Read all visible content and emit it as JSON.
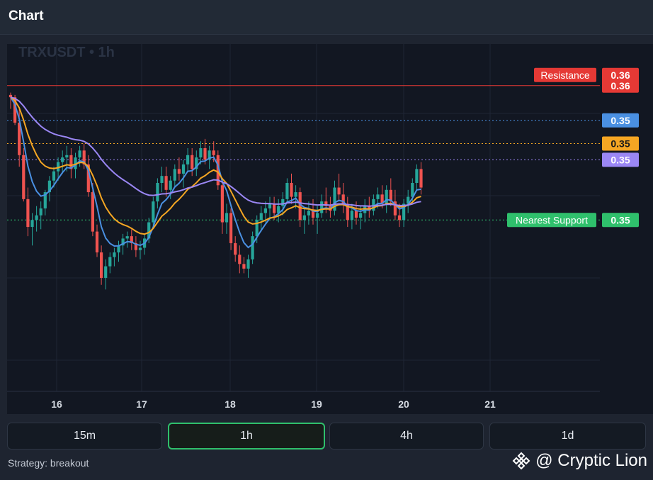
{
  "header": {
    "title": "Chart"
  },
  "timeframes": [
    {
      "label": "15m",
      "active": false
    },
    {
      "label": "1h",
      "active": true
    },
    {
      "label": "4h",
      "active": false
    },
    {
      "label": "1d",
      "active": false
    }
  ],
  "footer": {
    "strategy": "Strategy: breakout",
    "brand": "@ Cryptic Lion"
  },
  "colors": {
    "up": "#26a69a",
    "down": "#ef5350",
    "ema_fast": "#4a90e2",
    "ema_mid": "#f5a623",
    "ema_slow": "#9b87f5",
    "resistance": "#e53935",
    "support": "#2fc06c",
    "active_border": "#2fc06c"
  },
  "icons": {
    "brand_logo": "binance-diamond-icon"
  },
  "chart_data": {
    "type": "candlestick",
    "symbol": "TRXUSDT",
    "interval": "1h",
    "watermark": "TRXUSDT • 1h",
    "x_ticks": [
      "16",
      "17",
      "18",
      "19",
      "20",
      "21"
    ],
    "y_ticks": [
      "0.36"
    ],
    "ylim": [
      0.3428,
      0.3578
    ],
    "price_tick_values": [
      0.356
    ],
    "x_tick_index": [
      16,
      40,
      64,
      88,
      112,
      136
    ],
    "closes": [
      0.3556,
      0.3548,
      0.3535,
      0.3523,
      0.3512,
      0.3506,
      0.3505,
      0.3511,
      0.3519,
      0.3522,
      0.3527,
      0.3529,
      0.3532,
      0.3531,
      0.3528,
      0.3529,
      0.3532,
      0.3531,
      0.3527,
      0.353,
      0.3526,
      0.3517,
      0.3508,
      0.3502,
      0.3497,
      0.3491,
      0.3487,
      0.3488,
      0.3493,
      0.3496,
      0.3497,
      0.3496,
      0.3498,
      0.3495,
      0.3495,
      0.35,
      0.3509,
      0.3517,
      0.352,
      0.3519,
      0.3516,
      0.3518,
      0.352,
      0.3523,
      0.3519,
      0.3521,
      0.3524,
      0.3526,
      0.353,
      0.3527,
      0.3523,
      0.3524,
      0.353,
      0.3534,
      0.3527,
      0.3519,
      0.3516,
      0.3516,
      0.3514,
      0.3509,
      0.3505,
      0.3504,
      0.3506,
      0.3505,
      0.3508,
      0.3511,
      0.3509,
      0.3509,
      0.3507,
      0.3505,
      0.3503,
      0.3508,
      0.3511,
      0.3512,
      0.3514,
      0.3517,
      0.3516,
      0.3513,
      0.351,
      0.3506,
      0.3504,
      0.3508,
      0.3509,
      0.3506,
      0.3508,
      0.3513,
      0.3514,
      0.3513,
      0.3514,
      0.3511,
      0.3506,
      0.3505,
      0.3509,
      0.3512,
      0.3513,
      0.3513,
      0.3509,
      0.3509,
      0.3511,
      0.3507,
      0.351,
      0.3512,
      0.3517,
      0.3523,
      0.3525,
      0.3523,
      0.3522,
      0.3518,
      0.3516,
      0.3513,
      0.3509,
      0.3505,
      0.3506,
      0.351,
      0.3509,
      0.3511,
      0.3515,
      0.3517,
      0.3519,
      0.3518,
      0.3521,
      0.3523,
      0.3524,
      0.3521,
      0.352,
      0.3521,
      0.3523,
      0.3525,
      0.3525,
      0.3528,
      0.353,
      0.3535,
      0.3535,
      0.3539,
      0.3541,
      0.3542,
      0.3541,
      0.3543,
      0.3547,
      0.3555,
      0.3552,
      0.3557,
      0.3554,
      0.3549,
      0.3554,
      0.3551,
      0.3545,
      0.3547,
      0.3549,
      0.3546,
      0.3544,
      0.3542,
      0.3538,
      0.3536,
      0.3539,
      0.3543,
      0.3547,
      0.3544,
      0.3542,
      0.3539,
      0.3543,
      0.3547,
      0.3553,
      0.3558,
      0.3556,
      0.3552,
      0.3545,
      0.3542,
      0.3535,
      0.3532,
      0.3527,
      0.3524,
      0.3526,
      0.3529,
      0.3533,
      0.3537,
      0.3542,
      0.3538,
      0.3537,
      0.3539,
      0.3543,
      0.3547,
      0.3552,
      0.3549,
      0.3543,
      0.354,
      0.3536,
      0.3532,
      0.3532,
      0.3535,
      0.3536,
      0.3532,
      0.3531,
      0.353,
      0.3533,
      0.3536,
      0.3542,
      0.3548,
      0.3551,
      0.3548,
      0.3546,
      0.3551,
      0.3553,
      0.3555,
      0.3556,
      0.3557,
      0.3551,
      0.3549,
      0.3548,
      0.3553,
      0.3556,
      0.3558,
      0.3557,
      0.3555,
      0.3552,
      0.3548,
      0.3546,
      0.3546,
      0.3547,
      0.3549,
      0.3548,
      0.3551,
      0.3552,
      0.3555,
      0.3558,
      0.3556,
      0.3553,
      0.3551,
      0.3552,
      0.355,
      0.3548,
      0.355,
      0.3552,
      0.3549,
      0.3546,
      0.3542,
      0.3542,
      0.3545,
      0.3547,
      0.355,
      0.3552,
      0.3553,
      0.3551,
      0.3548,
      0.355,
      0.3549,
      0.3546,
      0.3543,
      0.3539,
      0.3537,
      0.3538,
      0.3537,
      0.3539,
      0.3543,
      0.3545,
      0.3542,
      0.3539,
      0.3541,
      0.354,
      0.3538,
      0.354,
      0.3539,
      0.3541,
      0.3541,
      0.3542,
      0.3539,
      0.3534,
      0.3535,
      0.3537,
      0.3538,
      0.3542,
      0.3546,
      0.3549,
      0.3545,
      0.3542,
      0.354,
      0.3541,
      0.3542,
      0.3545,
      0.3546,
      0.3545,
      0.3546,
      0.3548,
      0.3547,
      0.3546,
      0.3549,
      0.3551,
      0.3554,
      0.3556,
      0.3558,
      0.3556,
      0.3553,
      0.3553,
      0.3556,
      0.3558,
      0.3557,
      0.3556,
      0.3555,
      0.3557,
      0.3558,
      0.3559,
      0.3563,
      0.3568,
      0.357,
      0.3568,
      0.3568,
      0.3566,
      0.3564,
      0.3561,
      0.3558,
      0.3555,
      0.3553,
      0.3551,
      0.3549,
      0.3549,
      0.3547,
      0.3549,
      0.3551,
      0.3553,
      0.3552,
      0.3552,
      0.3553,
      0.3554,
      0.3558,
      0.3563,
      0.3569,
      0.3567,
      0.3564,
      0.3559,
      0.3556,
      0.3551,
      0.3549,
      0.3543,
      0.354,
      0.354,
      0.3539,
      0.3537,
      0.3533,
      0.3531,
      0.3533,
      0.3532,
      0.3536,
      0.3538,
      0.3539,
      0.354,
      0.3541,
      0.3542,
      0.3547,
      0.355,
      0.3554,
      0.3561,
      0.3567,
      0.3566,
      0.3564,
      0.3562,
      0.3563,
      0.3563,
      0.3563,
      0.3566,
      0.3568,
      0.3572,
      0.357,
      0.3569,
      0.3566,
      0.3566,
      0.3566,
      0.3562,
      0.3558,
      0.3557,
      0.3562,
      0.3566,
      0.3565,
      0.3564,
      0.3559,
      0.3557,
      0.3556,
      0.3558,
      0.356,
      0.3561,
      0.3561,
      0.3561,
      0.356,
      0.3558,
      0.3556,
      0.3556
    ],
    "ohlc": [
      [
        0.3556,
        0.3557,
        0.355,
        0.3555
      ],
      [
        0.3555,
        0.3556,
        0.3543,
        0.3544
      ],
      [
        0.3544,
        0.355,
        0.3525,
        0.353
      ],
      [
        0.353,
        0.3533,
        0.351,
        0.3511
      ],
      [
        0.3511,
        0.3516,
        0.3495,
        0.3499
      ],
      [
        0.3499,
        0.3505,
        0.3491,
        0.3502
      ],
      [
        0.3502,
        0.3508,
        0.3497,
        0.3504
      ],
      [
        0.3504,
        0.351,
        0.3498,
        0.3507
      ],
      [
        0.3507,
        0.3515,
        0.3504,
        0.3514
      ],
      [
        0.3514,
        0.3521,
        0.351,
        0.3519
      ],
      [
        0.3519,
        0.3525,
        0.3516,
        0.3523
      ],
      [
        0.3523,
        0.3529,
        0.3519,
        0.3527
      ],
      [
        0.3527,
        0.3532,
        0.3522,
        0.3529
      ],
      [
        0.3529,
        0.3534,
        0.3523,
        0.353
      ],
      [
        0.353,
        0.3533,
        0.352,
        0.3524
      ],
      [
        0.3524,
        0.3531,
        0.352,
        0.3529
      ],
      [
        0.3529,
        0.3534,
        0.3525,
        0.3532
      ],
      [
        0.3532,
        0.3535,
        0.3524,
        0.3526
      ],
      [
        0.3526,
        0.353,
        0.3512,
        0.3514
      ],
      [
        0.3514,
        0.3518,
        0.3495,
        0.3497
      ],
      [
        0.3497,
        0.35,
        0.3486,
        0.3488
      ],
      [
        0.3488,
        0.3491,
        0.3474,
        0.3477
      ],
      [
        0.3477,
        0.3485,
        0.3472,
        0.3482
      ],
      [
        0.3482,
        0.3488,
        0.3479,
        0.3486
      ],
      [
        0.3486,
        0.349,
        0.3482,
        0.3488
      ],
      [
        0.3488,
        0.3493,
        0.3484,
        0.3491
      ],
      [
        0.3491,
        0.3496,
        0.3487,
        0.3494
      ],
      [
        0.3494,
        0.3497,
        0.349,
        0.3495
      ],
      [
        0.3495,
        0.3498,
        0.3489,
        0.3492
      ],
      [
        0.3492,
        0.3495,
        0.3486,
        0.3489
      ],
      [
        0.3489,
        0.3493,
        0.3485,
        0.349
      ],
      [
        0.349,
        0.3496,
        0.3487,
        0.3494
      ],
      [
        0.3494,
        0.3503,
        0.3492,
        0.3501
      ],
      [
        0.3501,
        0.3512,
        0.3499,
        0.351
      ],
      [
        0.351,
        0.352,
        0.3507,
        0.3518
      ],
      [
        0.3518,
        0.3525,
        0.3514,
        0.3521
      ],
      [
        0.3521,
        0.3525,
        0.3512,
        0.3515
      ],
      [
        0.3515,
        0.3521,
        0.3511,
        0.3519
      ],
      [
        0.3519,
        0.3526,
        0.3516,
        0.3524
      ],
      [
        0.3524,
        0.3529,
        0.3519,
        0.3522
      ],
      [
        0.3522,
        0.3528,
        0.3516,
        0.3526
      ],
      [
        0.3526,
        0.3533,
        0.3523,
        0.353
      ],
      [
        0.353,
        0.3533,
        0.3521,
        0.3524
      ],
      [
        0.3524,
        0.3532,
        0.3521,
        0.3529
      ],
      [
        0.3529,
        0.3536,
        0.3526,
        0.3533
      ],
      [
        0.3533,
        0.3537,
        0.3526,
        0.3528
      ],
      [
        0.3528,
        0.3534,
        0.3524,
        0.3532
      ],
      [
        0.3532,
        0.3536,
        0.3527,
        0.353
      ],
      [
        0.353,
        0.3532,
        0.3515,
        0.3517
      ],
      [
        0.3517,
        0.352,
        0.3496,
        0.3501
      ],
      [
        0.3501,
        0.3509,
        0.3496,
        0.3505
      ],
      [
        0.3505,
        0.3507,
        0.3489,
        0.3492
      ],
      [
        0.3492,
        0.3495,
        0.3484,
        0.3487
      ],
      [
        0.3487,
        0.3491,
        0.3479,
        0.3483
      ],
      [
        0.3483,
        0.3486,
        0.3479,
        0.3481
      ],
      [
        0.3481,
        0.3487,
        0.3477,
        0.3485
      ],
      [
        0.3485,
        0.3497,
        0.3483,
        0.3495
      ],
      [
        0.3495,
        0.3504,
        0.3492,
        0.3502
      ],
      [
        0.3502,
        0.3508,
        0.3497,
        0.3505
      ],
      [
        0.3505,
        0.351,
        0.3501,
        0.3507
      ],
      [
        0.3507,
        0.3512,
        0.3503,
        0.3509
      ],
      [
        0.3509,
        0.3512,
        0.3502,
        0.3505
      ],
      [
        0.3505,
        0.3511,
        0.3501,
        0.3508
      ],
      [
        0.3508,
        0.3514,
        0.3504,
        0.3511
      ],
      [
        0.3511,
        0.352,
        0.3509,
        0.3518
      ],
      [
        0.3518,
        0.3522,
        0.3509,
        0.3512
      ],
      [
        0.3512,
        0.3517,
        0.3507,
        0.3514
      ],
      [
        0.3514,
        0.3516,
        0.3499,
        0.3502
      ],
      [
        0.3502,
        0.3507,
        0.3496,
        0.3504
      ],
      [
        0.3504,
        0.351,
        0.35,
        0.3506
      ],
      [
        0.3506,
        0.3511,
        0.35,
        0.3503
      ],
      [
        0.3503,
        0.3508,
        0.3496,
        0.3505
      ],
      [
        0.3505,
        0.3513,
        0.3503,
        0.351
      ],
      [
        0.351,
        0.3516,
        0.3505,
        0.3508
      ],
      [
        0.3508,
        0.3512,
        0.3503,
        0.3506
      ],
      [
        0.3506,
        0.3519,
        0.3504,
        0.3516
      ],
      [
        0.3516,
        0.3522,
        0.351,
        0.3513
      ],
      [
        0.3513,
        0.3518,
        0.3505,
        0.3509
      ],
      [
        0.3509,
        0.3512,
        0.3499,
        0.3502
      ],
      [
        0.3502,
        0.3509,
        0.3498,
        0.3506
      ],
      [
        0.3506,
        0.351,
        0.35,
        0.3503
      ],
      [
        0.3503,
        0.3508,
        0.3498,
        0.3505
      ],
      [
        0.3505,
        0.3511,
        0.3501,
        0.3508
      ],
      [
        0.3508,
        0.3512,
        0.3503,
        0.3506
      ],
      [
        0.3506,
        0.3513,
        0.3504,
        0.3511
      ],
      [
        0.3511,
        0.3516,
        0.3507,
        0.3513
      ],
      [
        0.3513,
        0.3517,
        0.3507,
        0.3509
      ],
      [
        0.3509,
        0.3517,
        0.3505,
        0.3515
      ],
      [
        0.3515,
        0.352,
        0.3508,
        0.351
      ],
      [
        0.351,
        0.3515,
        0.3502,
        0.3504
      ],
      [
        0.3504,
        0.3509,
        0.3499,
        0.3502
      ],
      [
        0.3502,
        0.3511,
        0.3499,
        0.3509
      ],
      [
        0.3509,
        0.3515,
        0.3505,
        0.3512
      ],
      [
        0.3512,
        0.352,
        0.351,
        0.3518
      ],
      [
        0.3518,
        0.3526,
        0.3515,
        0.3524
      ],
      [
        0.3524,
        0.3527,
        0.3513,
        0.3516
      ]
    ],
    "series": [
      {
        "name": "",
        "color_key": "ema_fast"
      },
      {
        "name": "",
        "color_key": "ema_mid"
      },
      {
        "name": "",
        "color_key": "ema_slow"
      }
    ],
    "price_labels": [
      {
        "text": "0.36",
        "value": 0.356,
        "tone": "resistance"
      },
      {
        "text": "0.35",
        "value": 0.3545,
        "tone": "ema_fast"
      },
      {
        "text": "0.35",
        "value": 0.3535,
        "tone": "ema_mid"
      },
      {
        "text": "0.35",
        "value": 0.3528,
        "tone": "ema_slow"
      },
      {
        "text": "0.35",
        "value": 0.3502,
        "tone": "support"
      }
    ],
    "levels": [
      {
        "name": "Resistance",
        "value": 0.356,
        "price_text": "0.36",
        "style": "solid",
        "tone": "resistance"
      },
      {
        "name": "Nearest Support",
        "value": 0.3502,
        "price_text": "0.35",
        "style": "dotted",
        "tone": "support"
      }
    ],
    "hline_levels": [
      {
        "value": 0.3545,
        "tone": "ema_fast",
        "style": "dotted"
      },
      {
        "value": 0.3535,
        "tone": "ema_mid",
        "style": "dotted"
      },
      {
        "value": 0.3528,
        "tone": "ema_slow",
        "style": "dotted"
      }
    ],
    "grid": true
  }
}
